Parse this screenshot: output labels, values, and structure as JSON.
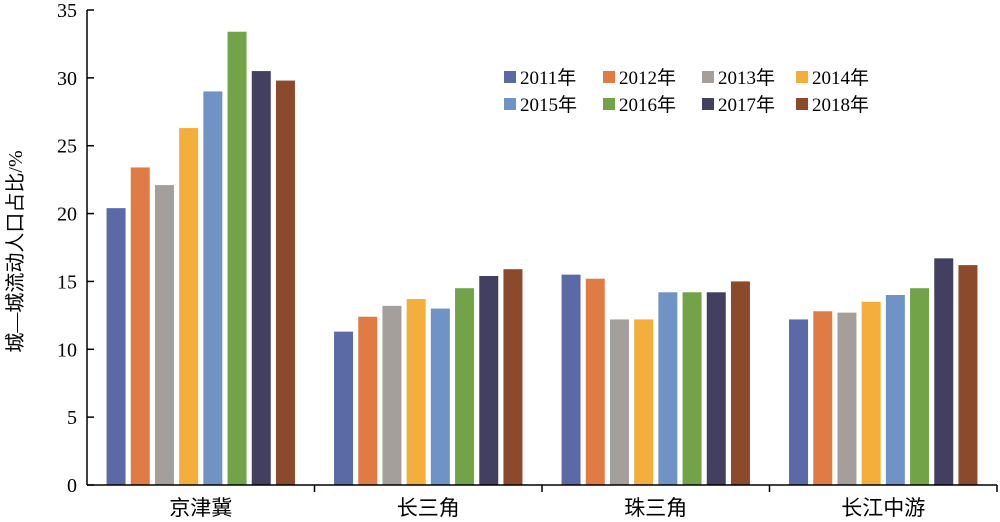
{
  "chart_data": {
    "type": "bar",
    "title": "",
    "xlabel": "",
    "ylabel": "城—城流动人口占比/%",
    "ylim": [
      0,
      35
    ],
    "yticks": [
      0,
      5,
      10,
      15,
      20,
      25,
      30,
      35
    ],
    "grid": false,
    "legend_position": "top-right",
    "categories": [
      "京津冀",
      "长三角",
      "珠三角",
      "长江中游"
    ],
    "series": [
      {
        "name": "2011年",
        "color": "#5b6aa6",
        "values": [
          20.4,
          11.3,
          15.5,
          12.2
        ]
      },
      {
        "name": "2012年",
        "color": "#e07b46",
        "values": [
          23.4,
          12.4,
          15.2,
          12.8
        ]
      },
      {
        "name": "2013年",
        "color": "#a59f9b",
        "values": [
          22.1,
          13.2,
          12.2,
          12.7
        ]
      },
      {
        "name": "2014年",
        "color": "#f3ae3c",
        "values": [
          26.3,
          13.7,
          12.2,
          13.5
        ]
      },
      {
        "name": "2015年",
        "color": "#6f93c5",
        "values": [
          29.0,
          13.0,
          14.2,
          14.0
        ]
      },
      {
        "name": "2016年",
        "color": "#72a348",
        "values": [
          33.4,
          14.5,
          14.2,
          14.5
        ]
      },
      {
        "name": "2017年",
        "color": "#433f60",
        "values": [
          30.5,
          15.4,
          14.2,
          16.7
        ]
      },
      {
        "name": "2018年",
        "color": "#8c4a2d",
        "values": [
          29.8,
          15.9,
          15.0,
          16.2
        ]
      }
    ]
  }
}
